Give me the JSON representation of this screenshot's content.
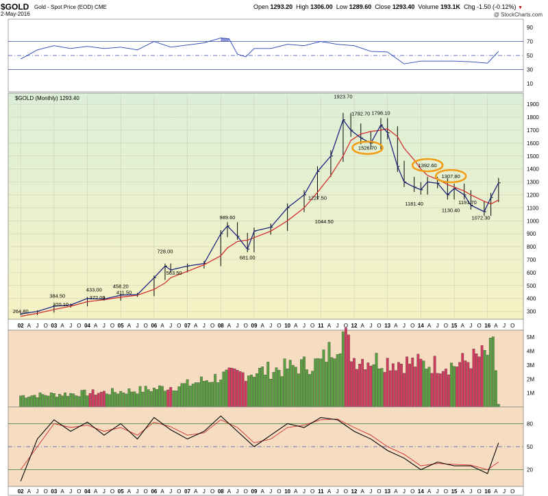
{
  "header": {
    "symbol": "$GOLD",
    "description": "Gold - Spot Price (EOD)",
    "exchange": "CME",
    "date": "2-May-2016",
    "credit": "@ StockCharts.com",
    "quote": {
      "open_label": "Open",
      "open": "1293.20",
      "high_label": "High",
      "high": "1306.00",
      "low_label": "Low",
      "low": "1289.60",
      "close_label": "Close",
      "close": "1293.40",
      "volume_label": "Volume",
      "volume": "193.1K",
      "chg_label": "Chg",
      "chg": "-1.50 (-0.12%)"
    },
    "price_label": "$GOLD (Monthly) 1293.40"
  },
  "colors": {
    "price_bg_top": "#dcefd8",
    "price_bg_bottom": "#f6f2c4",
    "lower_bg": "#f6dcc0",
    "ma_short": "#1a237e",
    "ma_long": "#d32f2f",
    "vol_up": "#5aa040",
    "vol_down": "#d23a5e",
    "rsi_line": "#1f3fb5",
    "rsi_fill": "#5c6bc0",
    "highlight": "#f39c12"
  },
  "chart_data": [
    {
      "type": "line",
      "panel": "rsi",
      "ylim": [
        0,
        100
      ],
      "yticks": [
        10,
        30,
        50,
        70,
        90
      ],
      "reference_lines": [
        30,
        50,
        70
      ],
      "x": [
        2002.0,
        2002.5,
        2003.0,
        2003.5,
        2004.0,
        2004.5,
        2005.0,
        2005.5,
        2006.0,
        2006.5,
        2007.0,
        2007.5,
        2008.0,
        2008.25,
        2008.5,
        2008.75,
        2009.0,
        2009.5,
        2010.0,
        2010.5,
        2011.0,
        2011.5,
        2012.0,
        2012.5,
        2013.0,
        2013.5,
        2014.0,
        2014.5,
        2015.0,
        2015.5,
        2016.0,
        2016.33
      ],
      "values": [
        45,
        58,
        64,
        60,
        63,
        60,
        62,
        58,
        70,
        62,
        65,
        68,
        75,
        74,
        52,
        48,
        60,
        60,
        66,
        64,
        70,
        66,
        64,
        56,
        55,
        38,
        42,
        42,
        42,
        41,
        39,
        56
      ]
    },
    {
      "type": "line",
      "panel": "price",
      "title": "$GOLD (Monthly) 1293.40",
      "ylim": [
        250,
        1975
      ],
      "yticks": [
        300,
        400,
        500,
        600,
        700,
        800,
        900,
        1000,
        1100,
        1200,
        1300,
        1400,
        1500,
        1600,
        1700,
        1800,
        1900
      ],
      "x_years": [
        "02",
        "03",
        "04",
        "05",
        "06",
        "07",
        "08",
        "09",
        "10",
        "11",
        "12",
        "13",
        "14",
        "15",
        "16"
      ],
      "x": [
        2002.0,
        2002.5,
        2003.0,
        2003.5,
        2004.0,
        2004.5,
        2005.0,
        2005.5,
        2006.0,
        2006.33,
        2006.5,
        2007.0,
        2007.5,
        2008.0,
        2008.2,
        2008.5,
        2008.8,
        2009.0,
        2009.5,
        2010.0,
        2010.5,
        2010.9,
        2011.3,
        2011.67,
        2011.9,
        2012.2,
        2012.5,
        2012.8,
        2013.0,
        2013.3,
        2013.5,
        2013.8,
        2014.0,
        2014.2,
        2014.5,
        2014.8,
        2015.0,
        2015.3,
        2015.5,
        2015.9,
        2016.1,
        2016.33
      ],
      "series": [
        {
          "values": [
            280,
            300,
            340,
            350,
            400,
            395,
            425,
            430,
            560,
            650,
            620,
            650,
            670,
            900,
            960,
            880,
            780,
            920,
            950,
            1100,
            1200,
            1380,
            1500,
            1780,
            1700,
            1640,
            1600,
            1740,
            1680,
            1420,
            1300,
            1260,
            1240,
            1300,
            1290,
            1200,
            1250,
            1200,
            1120,
            1070,
            1180,
            1293
          ]
        },
        {
          "values": [
            262,
            285,
            315,
            340,
            375,
            390,
            410,
            425,
            470,
            520,
            560,
            610,
            660,
            730,
            790,
            840,
            850,
            870,
            920,
            1000,
            1100,
            1220,
            1350,
            1500,
            1620,
            1670,
            1690,
            1700,
            1710,
            1650,
            1560,
            1470,
            1400,
            1350,
            1320,
            1280,
            1260,
            1230,
            1200,
            1150,
            1130,
            1160
          ]
        }
      ],
      "annotations": [
        {
          "label": "264.80",
          "x": 2002.0,
          "y": 264.8
        },
        {
          "label": "384.50",
          "x": 2003.1,
          "y": 384.5
        },
        {
          "label": "320.10",
          "x": 2003.2,
          "y": 320.1
        },
        {
          "label": "433.00",
          "x": 2004.2,
          "y": 433.0
        },
        {
          "label": "372.00",
          "x": 2004.3,
          "y": 372.0
        },
        {
          "label": "458.20",
          "x": 2005.0,
          "y": 458.2
        },
        {
          "label": "411.50",
          "x": 2005.1,
          "y": 411.5
        },
        {
          "label": "728.00",
          "x": 2006.33,
          "y": 728.0
        },
        {
          "label": "563.50",
          "x": 2006.6,
          "y": 563.5
        },
        {
          "label": "989.60",
          "x": 2008.2,
          "y": 989.6
        },
        {
          "label": "681.00",
          "x": 2008.8,
          "y": 681.0
        },
        {
          "label": "1227.50",
          "x": 2010.9,
          "y": 1227.5
        },
        {
          "label": "1044.50",
          "x": 2011.1,
          "y": 1044.5
        },
        {
          "label": "1923.70",
          "x": 2011.67,
          "y": 1923.7
        },
        {
          "label": "1792.70",
          "x": 2012.2,
          "y": 1792.7
        },
        {
          "label": "1798.10",
          "x": 2012.8,
          "y": 1798.1
        },
        {
          "label": "1526.70",
          "x": 2012.4,
          "y": 1526.7,
          "highlight": true
        },
        {
          "label": "1392.60",
          "x": 2014.2,
          "y": 1392.6,
          "highlight": true
        },
        {
          "label": "1307.80",
          "x": 2014.9,
          "y": 1307.8,
          "highlight": true
        },
        {
          "label": "1181.40",
          "x": 2013.8,
          "y": 1181.4
        },
        {
          "label": "1130.40",
          "x": 2014.9,
          "y": 1130.4
        },
        {
          "label": "1191.70",
          "x": 2015.4,
          "y": 1191.7
        },
        {
          "label": "1072.30",
          "x": 2015.8,
          "y": 1072.3
        }
      ]
    },
    {
      "type": "bar",
      "panel": "volume",
      "yticks_labels": [
        "1M",
        "2M",
        "3M",
        "4M",
        "5M"
      ],
      "yticks": [
        1,
        2,
        3,
        4,
        5
      ],
      "ylim": [
        0,
        5.4
      ],
      "x": [
        2002.0,
        2003.0,
        2004.0,
        2005.0,
        2006.0,
        2007.0,
        2008.0,
        2009.0,
        2010.0,
        2011.0,
        2011.67,
        2012.0,
        2013.0,
        2014.0,
        2015.0,
        2016.0,
        2016.2,
        2016.33
      ],
      "values": [
        0.8,
        0.9,
        1.0,
        1.1,
        1.3,
        1.6,
        2.2,
        2.5,
        2.8,
        3.2,
        5.3,
        3.5,
        3.3,
        3.1,
        3.0,
        3.8,
        4.3,
        0.2
      ]
    },
    {
      "type": "line",
      "panel": "stochastic",
      "yticks": [
        20,
        50,
        80
      ],
      "reference_lines": [
        20,
        50,
        80
      ],
      "ylim": [
        0,
        100
      ],
      "x": [
        2002.0,
        2002.5,
        2003.0,
        2003.5,
        2004.0,
        2004.5,
        2005.0,
        2005.5,
        2006.0,
        2006.5,
        2007.0,
        2007.5,
        2008.0,
        2008.5,
        2009.0,
        2009.5,
        2010.0,
        2010.5,
        2011.0,
        2011.5,
        2012.0,
        2012.5,
        2013.0,
        2013.5,
        2014.0,
        2014.5,
        2015.0,
        2015.5,
        2016.0,
        2016.33
      ],
      "series": [
        {
          "values": [
            5,
            60,
            85,
            70,
            82,
            65,
            80,
            60,
            88,
            72,
            60,
            70,
            90,
            70,
            50,
            65,
            80,
            75,
            88,
            85,
            70,
            60,
            45,
            35,
            20,
            30,
            25,
            25,
            15,
            55
          ]
        },
        {
          "values": [
            20,
            50,
            80,
            75,
            78,
            70,
            75,
            65,
            82,
            76,
            65,
            68,
            85,
            75,
            55,
            60,
            75,
            78,
            85,
            86,
            75,
            65,
            50,
            40,
            25,
            28,
            27,
            26,
            20,
            30
          ]
        }
      ]
    }
  ]
}
